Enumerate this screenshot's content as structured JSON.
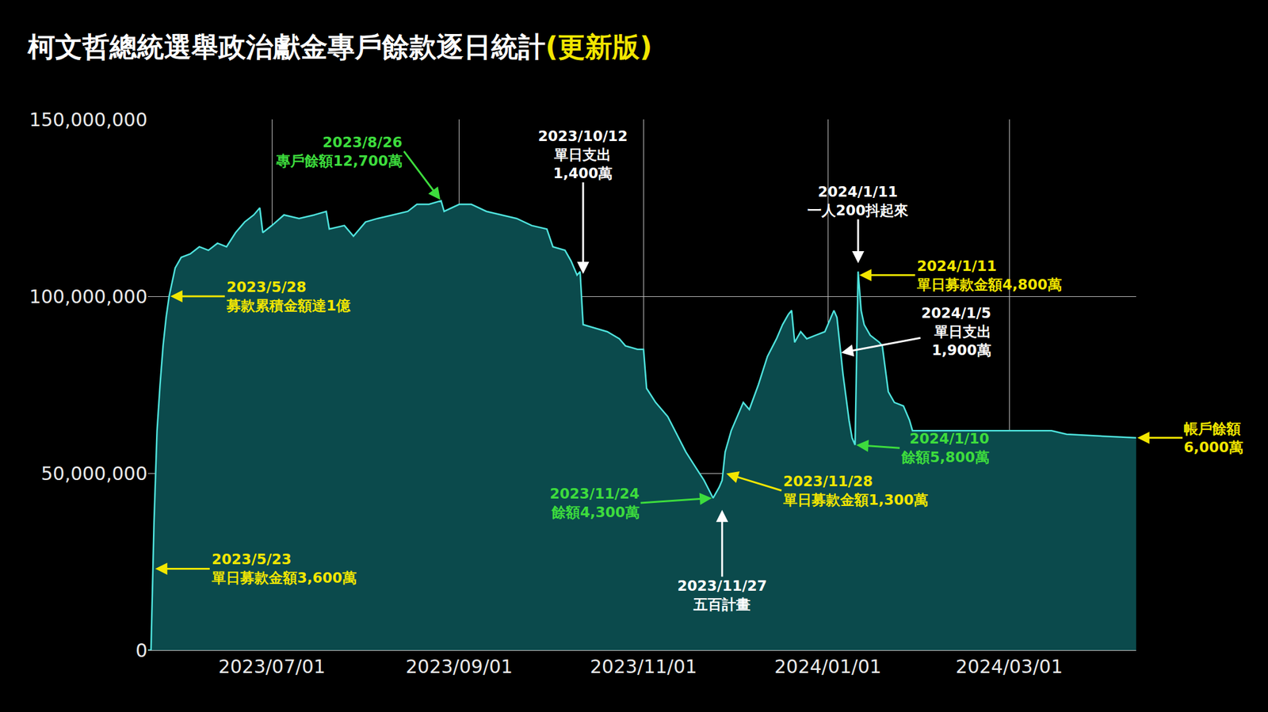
{
  "chart_data": {
    "type": "area",
    "title": "柯文哲總統選舉政治獻金專戶餘款逐日統計",
    "subtitle": "(更新版)",
    "color": "#4fe3dd",
    "grid": true,
    "x": [
      "2023-05-21",
      "2023-05-22",
      "2023-05-23",
      "2023-05-24",
      "2023-05-25",
      "2023-05-26",
      "2023-05-27",
      "2023-05-28",
      "2023-05-30",
      "2023-06-01",
      "2023-06-04",
      "2023-06-07",
      "2023-06-10",
      "2023-06-13",
      "2023-06-16",
      "2023-06-19",
      "2023-06-22",
      "2023-06-25",
      "2023-06-27",
      "2023-06-28",
      "2023-07-01",
      "2023-07-05",
      "2023-07-10",
      "2023-07-15",
      "2023-07-19",
      "2023-07-20",
      "2023-07-25",
      "2023-07-28",
      "2023-08-01",
      "2023-08-05",
      "2023-08-10",
      "2023-08-15",
      "2023-08-18",
      "2023-08-22",
      "2023-08-26",
      "2023-08-27",
      "2023-09-01",
      "2023-09-05",
      "2023-09-10",
      "2023-09-15",
      "2023-09-20",
      "2023-09-25",
      "2023-09-30",
      "2023-10-02",
      "2023-10-06",
      "2023-10-08",
      "2023-10-10",
      "2023-10-11",
      "2023-10-12",
      "2023-10-16",
      "2023-10-20",
      "2023-10-24",
      "2023-10-26",
      "2023-10-30",
      "2023-11-01",
      "2023-11-02",
      "2023-11-05",
      "2023-11-09",
      "2023-11-12",
      "2023-11-15",
      "2023-11-18",
      "2023-11-21",
      "2023-11-24",
      "2023-11-26",
      "2023-11-27",
      "2023-11-28",
      "2023-11-30",
      "2023-12-02",
      "2023-12-04",
      "2023-12-06",
      "2023-12-09",
      "2023-12-12",
      "2023-12-15",
      "2023-12-17",
      "2023-12-19",
      "2023-12-20",
      "2023-12-21",
      "2023-12-23",
      "2023-12-25",
      "2023-12-28",
      "2023-12-31",
      "2024-01-02",
      "2024-01-03",
      "2024-01-04",
      "2024-01-05",
      "2024-01-06",
      "2024-01-08",
      "2024-01-09",
      "2024-01-10",
      "2024-01-11",
      "2024-01-12",
      "2024-01-13",
      "2024-01-15",
      "2024-01-18",
      "2024-01-19",
      "2024-01-21",
      "2024-01-23",
      "2024-01-26",
      "2024-01-28",
      "2024-01-29",
      "2024-02-15",
      "2024-03-01",
      "2024-03-15",
      "2024-03-20",
      "2024-04-12"
    ],
    "values": [
      0,
      0,
      36000000,
      62000000,
      75000000,
      86000000,
      94000000,
      100000000,
      108000000,
      111000000,
      112000000,
      114000000,
      113000000,
      115000000,
      114000000,
      118000000,
      121000000,
      123000000,
      125000000,
      118000000,
      120000000,
      123000000,
      122000000,
      123000000,
      124000000,
      119000000,
      120000000,
      117000000,
      121000000,
      122000000,
      123000000,
      124000000,
      126000000,
      126000000,
      127000000,
      124000000,
      126000000,
      126000000,
      124000000,
      123000000,
      122000000,
      120000000,
      119000000,
      114000000,
      113000000,
      110000000,
      106000000,
      107000000,
      92000000,
      91000000,
      90000000,
      88000000,
      86000000,
      85000000,
      85000000,
      74000000,
      70000000,
      66000000,
      61000000,
      56000000,
      52000000,
      48000000,
      43000000,
      46000000,
      48000000,
      56000000,
      62000000,
      66000000,
      70000000,
      68000000,
      75000000,
      83000000,
      88000000,
      92000000,
      95000000,
      96000000,
      87000000,
      90000000,
      88000000,
      89000000,
      90000000,
      94000000,
      96000000,
      94000000,
      86000000,
      78000000,
      65000000,
      60000000,
      58000000,
      107000000,
      96000000,
      92000000,
      89000000,
      87000000,
      86000000,
      73000000,
      70000000,
      69000000,
      65000000,
      62000000,
      62000000,
      62000000,
      62000000,
      61000000,
      60000000
    ],
    "xlim": [
      "2023-05-21",
      "2024-04-12"
    ],
    "xticks": [
      {
        "value": "2023-07-01",
        "label": "2023/07/01"
      },
      {
        "value": "2023-09-01",
        "label": "2023/09/01"
      },
      {
        "value": "2023-11-01",
        "label": "2023/11/01"
      },
      {
        "value": "2024-01-01",
        "label": "2024/01/01"
      },
      {
        "value": "2024-03-01",
        "label": "2024/03/01"
      }
    ],
    "ylim": [
      0,
      150000000
    ],
    "yticks": [
      0,
      {
        "value": 50000000,
        "label": "50,000,000"
      },
      {
        "value": 100000000,
        "label": "100,000,000"
      },
      {
        "value": 150000000,
        "label": "150,000,000"
      }
    ],
    "annotations": [
      {
        "x": "2023-05-23",
        "y": 23000000,
        "text": "2023/5/23\n單日募款金額3,600萬",
        "color": "#f2e600"
      },
      {
        "x": "2023-05-28",
        "y": 100000000,
        "text": "2023/5/28\n募款累積金額達1億",
        "color": "#f2e600"
      },
      {
        "x": "2023-08-26",
        "y": 127000000,
        "text": "2023/8/26\n專戶餘額12,700萬",
        "color": "#3ddc3d"
      },
      {
        "x": "2023-10-12",
        "y": 106000000,
        "text": "2023/10/12\n單日支出\n1,400萬",
        "color": "#ffffff"
      },
      {
        "x": "2023-11-24",
        "y": 43000000,
        "text": "2023/11/24\n餘額4,300萬",
        "color": "#3ddc3d"
      },
      {
        "x": "2023-11-27",
        "y": 40000000,
        "text": "2023/11/27\n五百計畫",
        "color": "#ffffff"
      },
      {
        "x": "2023-11-28",
        "y": 50000000,
        "text": "2023/11/28\n單日募款金額1,300萬",
        "color": "#f2e600"
      },
      {
        "x": "2024-01-11",
        "y": 109000000,
        "text": "2024/1/11\n一人200抖起來",
        "color": "#ffffff"
      },
      {
        "x": "2024-01-11",
        "y": 106000000,
        "text": "2024/1/11\n單日募款金額4,800萬",
        "color": "#f2e600"
      },
      {
        "x": "2024-01-05",
        "y": 84000000,
        "text": "2024/1/5\n單日支出\n1,900萬",
        "color": "#ffffff"
      },
      {
        "x": "2024-01-10",
        "y": 58000000,
        "text": "2024/1/10\n餘額5,800萬",
        "color": "#3ddc3d"
      },
      {
        "x": "2024-04-12",
        "y": 60000000,
        "text": "帳戶餘額\n6,000萬",
        "color": "#f2e600"
      }
    ]
  }
}
